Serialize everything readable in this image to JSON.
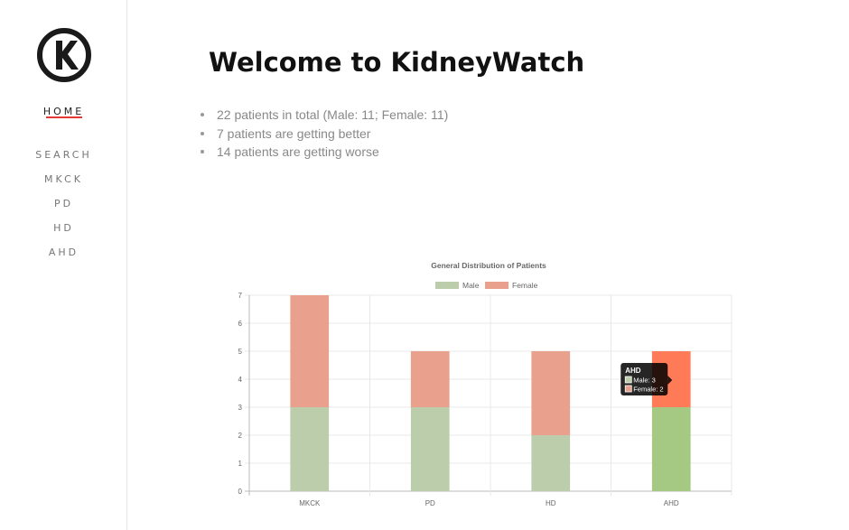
{
  "sidebar": {
    "logo_icon": "kidneywatch-k-logo",
    "items": [
      {
        "label": "HOME",
        "active": true
      },
      {
        "label": "SEARCH"
      },
      {
        "label": "MKCK"
      },
      {
        "label": "PD"
      },
      {
        "label": "HD"
      },
      {
        "label": "AHD"
      }
    ]
  },
  "main": {
    "title": "Welcome to KidneyWatch",
    "summary": [
      "22 patients in total (Male: 11; Female: 11)",
      "7 patients are getting better",
      "14 patients are getting worse"
    ]
  },
  "chart_data": {
    "type": "bar",
    "stacked": true,
    "title": "General Distribution of Patients",
    "categories": [
      "MKCK",
      "PD",
      "HD",
      "AHD"
    ],
    "series": [
      {
        "name": "Male",
        "values": [
          3,
          3,
          2,
          3
        ],
        "color": "#bccdac"
      },
      {
        "name": "Female",
        "values": [
          4,
          2,
          3,
          2
        ],
        "color": "#e9a08c"
      }
    ],
    "ylim": [
      0,
      7
    ],
    "yticks": [
      "0",
      "1",
      "2",
      "3",
      "4",
      "5",
      "6",
      "7"
    ],
    "grid": true,
    "legend": "top",
    "highlight_colors": {
      "Male": "#a5c882",
      "Female": "#ff7a57"
    },
    "tooltip": {
      "title": "AHD",
      "lines": [
        "Male: 3",
        "Female: 2"
      ]
    }
  }
}
